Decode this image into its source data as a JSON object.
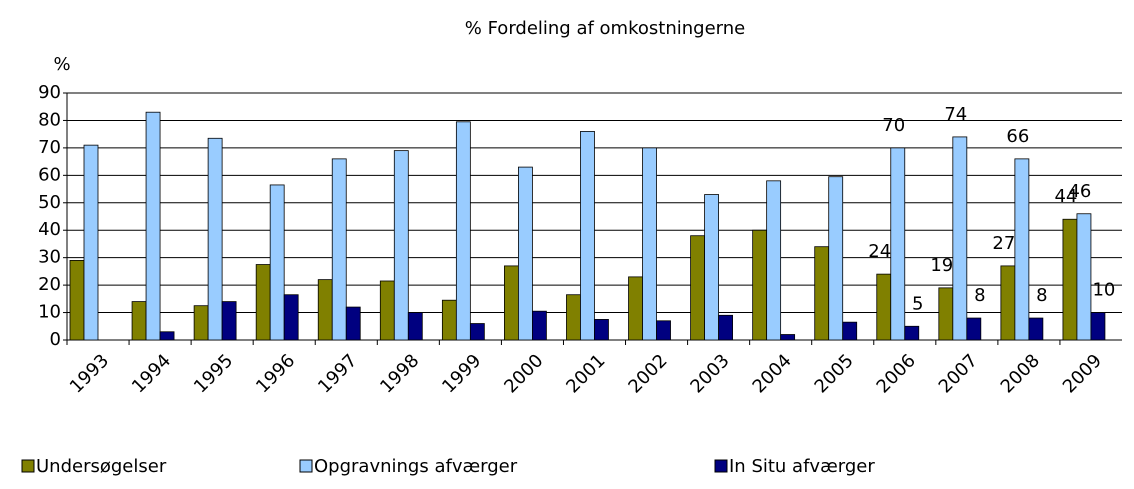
{
  "chart_data": {
    "type": "bar",
    "title": "%  Fordeling af omkostningerne",
    "y_label": "%",
    "categories": [
      "1993",
      "1994",
      "1995",
      "1996",
      "1997",
      "1998",
      "1999",
      "2000",
      "2001",
      "2002",
      "2003",
      "2004",
      "2005",
      "2006",
      "2007",
      "2008",
      "2009"
    ],
    "series": [
      {
        "name": "Undersøgelser",
        "color": "#808000",
        "values": [
          29,
          14,
          12.5,
          27.5,
          22,
          21.5,
          14.5,
          27,
          16.5,
          23,
          38,
          40,
          34,
          24,
          19,
          27,
          44
        ],
        "value_labels": [
          null,
          null,
          null,
          null,
          null,
          null,
          null,
          null,
          null,
          null,
          null,
          null,
          null,
          "24",
          "19",
          "27",
          "44"
        ]
      },
      {
        "name": "Opgravnings afværger",
        "color": "#99ccff",
        "values": [
          71,
          83,
          73.5,
          56.5,
          66,
          69,
          79.5,
          63,
          76,
          70,
          53,
          58,
          59.5,
          70,
          74,
          66,
          46
        ],
        "value_labels": [
          null,
          null,
          null,
          null,
          null,
          null,
          null,
          null,
          null,
          null,
          null,
          null,
          null,
          "70",
          "74",
          "66",
          "46"
        ]
      },
      {
        "name": "In Situ afværger",
        "color": "#000080",
        "values": [
          0,
          3,
          14,
          16.5,
          12,
          10,
          6,
          10.5,
          7.5,
          7,
          9,
          2,
          6.5,
          5,
          8,
          8,
          10
        ],
        "value_labels": [
          null,
          null,
          null,
          null,
          null,
          null,
          null,
          null,
          null,
          null,
          null,
          null,
          null,
          "5",
          "8",
          "8",
          "10"
        ]
      }
    ],
    "ylim": [
      0,
      90
    ],
    "yticks": [
      0,
      10,
      20,
      30,
      40,
      50,
      60,
      70,
      80,
      90
    ],
    "grid": true,
    "legend": "bottom"
  }
}
